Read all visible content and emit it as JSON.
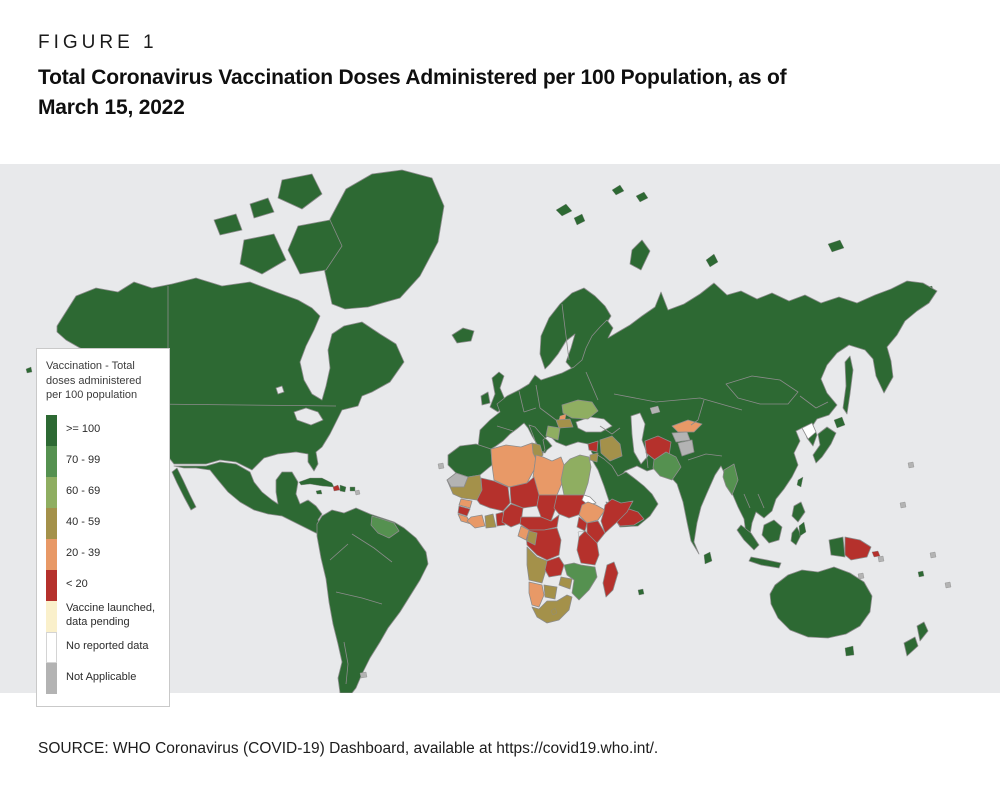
{
  "figure": {
    "label": "FIGURE 1",
    "title_line1": "Total Coronavirus Vaccination Doses Administered per 100 Population, as of",
    "title_line2": "March 15, 2022"
  },
  "source": {
    "text": "SOURCE: WHO Coronavirus (COVID-19) Dashboard, available at https://covid19.who.int/."
  },
  "legend": {
    "title": "Vaccination - Total\ndoses administered\nper 100 population",
    "items": [
      {
        "key": "ge100",
        "label": ">= 100"
      },
      {
        "key": "v70_99",
        "label": "70 - 99"
      },
      {
        "key": "v60_69",
        "label": "60 - 69"
      },
      {
        "key": "v40_59",
        "label": "40 - 59"
      },
      {
        "key": "v20_39",
        "label": "20 - 39"
      },
      {
        "key": "lt20",
        "label": "< 20"
      },
      {
        "key": "pending",
        "label": "Vaccine launched, data pending"
      },
      {
        "key": "no_data",
        "label": "No reported data",
        "outlined": true
      },
      {
        "key": "na",
        "label": "Not Applicable"
      }
    ]
  },
  "map": {
    "ocean_color": "#e8e9eb",
    "border_color": "#8c8c8c",
    "category_colors": {
      "ge100": "#2d6933",
      "v70_99": "#559150",
      "v60_69": "#8fae61",
      "v40_59": "#a4914a",
      "v20_39": "#e89967",
      "lt20": "#b5312c",
      "pending": "#faf0cb",
      "no_data": "#ffffff",
      "na": "#b3b3b3",
      "water": "#e8e9eb"
    },
    "regions": {
      "ocean": "water",
      "greenland": "ge100",
      "arctic-ellesmere": "ge100",
      "arctic-baffin": "ge100",
      "arctic-victoria": "ge100",
      "arctic-small-1": "ge100",
      "arctic-small-2": "ge100",
      "north-america": "ge100",
      "mexico-central-america": "ge100",
      "baja-california": "ge100",
      "cuba": "ge100",
      "jamaica": "ge100",
      "haiti": "lt20",
      "dominican-republic": "ge100",
      "puerto-rico": "ge100",
      "south-america": "ge100",
      "guyanas": "v70_99",
      "falkland-islands": "na",
      "iceland": "ge100",
      "united-kingdom": "ge100",
      "ireland": "ge100",
      "scandinavia": "ge100",
      "svalbard-1": "ge100",
      "svalbard-2": "ge100",
      "franz-josef-1": "ge100",
      "franz-josef-2": "ge100",
      "novaya-zemlya": "ge100",
      "severnaya-zemlya": "ge100",
      "new-siberian-islands": "ge100",
      "wrangel-island": "ge100",
      "eurasia": "ge100",
      "arabia": "ge100",
      "ukraine": "v60_69",
      "moldova": "v20_39",
      "romania": "v40_59",
      "balkans": "v60_69",
      "syria": "lt20",
      "iraq": "v40_59",
      "jordan": "v40_59",
      "yemen": "lt20",
      "kyrgyzstan": "v20_39",
      "tajikistan": "na",
      "kashmir": "na",
      "aral-area": "na",
      "afghanistan": "lt20",
      "pakistan": "v70_99",
      "myanmar": "v70_99",
      "north-korea": "no_data",
      "morocco": "ge100",
      "western-sahara": "na",
      "algeria": "v20_39",
      "tunisia": "v40_59",
      "libya": "v20_39",
      "egypt": "v60_69",
      "mauritania": "v40_59",
      "senegal": "v20_39",
      "guinea": "lt20",
      "sierra-leone-liberia": "v20_39",
      "mali": "lt20",
      "cote-divoire": "v20_39",
      "ghana": "v40_59",
      "togo-benin": "lt20",
      "niger": "lt20",
      "nigeria": "lt20",
      "chad": "lt20",
      "sudan": "lt20",
      "eritrea": "no_data",
      "ethiopia": "v20_39",
      "somalia": "lt20",
      "cameroon-car": "lt20",
      "uganda": "lt20",
      "kenya": "lt20",
      "drc": "lt20",
      "gabon": "v20_39",
      "congo": "v40_59",
      "tanzania": "lt20",
      "angola": "v40_59",
      "zambia": "lt20",
      "malawi": "lt20",
      "mozambique": "v70_99",
      "zimbabwe": "v40_59",
      "namibia": "v20_39",
      "botswana": "v40_59",
      "south-africa": "v40_59",
      "lesotho": "v40_59",
      "madagascar": "lt20",
      "sri-lanka": "ge100",
      "sumatra": "ge100",
      "java": "ge100",
      "borneo": "ge100",
      "sulawesi": "ge100",
      "philippines": "ge100",
      "mindanao": "ge100",
      "taiwan": "ge100",
      "japan-honshu": "ge100",
      "japan-hokkaido": "ge100",
      "sakhalin": "ge100",
      "west-papua": "ge100",
      "papua-new-guinea": "lt20",
      "solomon-islands": "lt20",
      "australia": "ge100",
      "tasmania": "ge100",
      "new-zealand-north": "ge100",
      "new-zealand-south": "ge100",
      "fiji": "ge100",
      "mauritius": "ge100",
      "aleutian-1": "ge100",
      "aleutian-2": "ge100",
      "small-island": "na",
      "black-sea": "water",
      "caspian-sea": "water",
      "great-lakes": "water",
      "lake-victoria": "water"
    }
  }
}
